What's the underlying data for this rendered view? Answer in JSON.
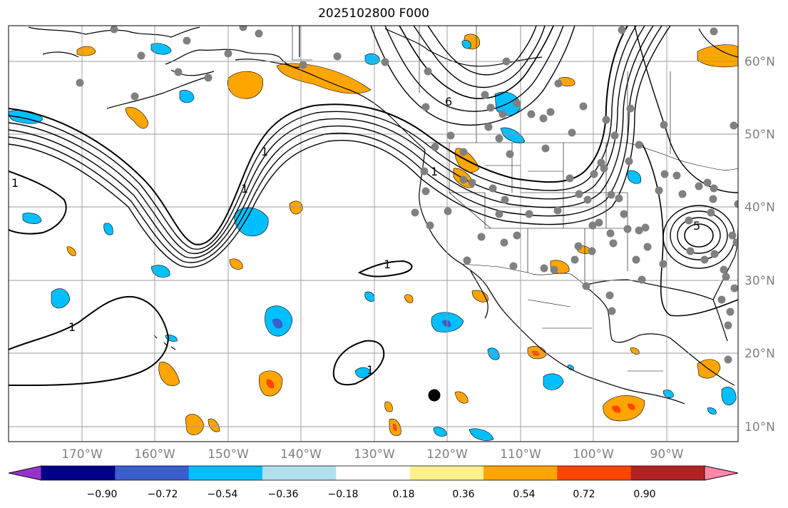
{
  "title": "2025102800 F000",
  "map": {
    "projection": "plate-carree",
    "lon_range": [
      -180,
      -79
    ],
    "lat_range": [
      8,
      65
    ],
    "grid": true,
    "lat_labels": [
      "60°N",
      "50°N",
      "40°N",
      "30°N",
      "20°N",
      "10°N"
    ],
    "lon_labels": [
      "170°W",
      "160°W",
      "150°W",
      "140°W",
      "130°W",
      "120°W",
      "110°W",
      "100°W",
      "90°W"
    ],
    "contour_labels": [
      "1",
      "1",
      "1",
      "1",
      "1",
      "1",
      "1",
      "6",
      "5"
    ],
    "station_marker_color": "#808080",
    "highlight_marker_color": "#000000"
  },
  "colorbar": {
    "tick_labels": [
      "−0.90",
      "−0.72",
      "−0.54",
      "−0.36",
      "−0.18",
      "0.18",
      "0.36",
      "0.54",
      "0.72",
      "0.90"
    ],
    "colors": [
      "#9932cc",
      "#00008b",
      "#3a5fcd",
      "#00bfff",
      "#b2dfee",
      "#ffffff",
      "#fff08c",
      "#ffa500",
      "#ff4500",
      "#b22222",
      "#ff88aa"
    ]
  }
}
